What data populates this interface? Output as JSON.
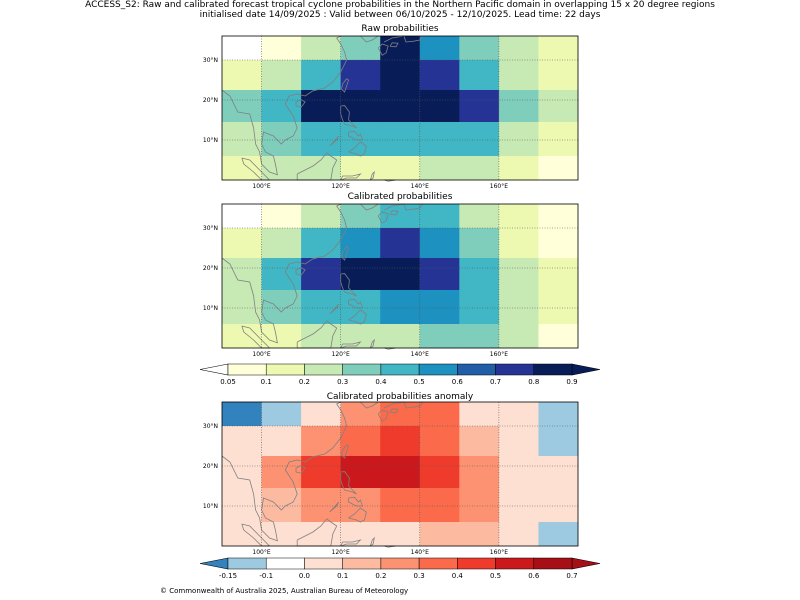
{
  "header": {
    "line1": "ACCESS_S2: Raw and calibrated forecast tropical cyclone probabilities in the Northern Pacific domain in overlapping 15 x 20 degree regions",
    "line2": "initialised date 14/09/2025 :  Valid between 06/10/2025 - 12/10/2025. Lead time: 22 days"
  },
  "footer": {
    "copyright": "© Commonwealth of Australia 2025, Australian Bureau of Meteorology"
  },
  "colors": {
    "prob": [
      "#ffffff",
      "#ffffd9",
      "#edf8b1",
      "#c7e9b4",
      "#7fcdbb",
      "#41b6c4",
      "#1d91c0",
      "#225ea8",
      "#253494",
      "#081d58"
    ],
    "anom": [
      "#3182bd",
      "#9ecae1",
      "#ffffff",
      "#fee0d2",
      "#fcbba1",
      "#fc9272",
      "#fb6a4a",
      "#ef3b2c",
      "#cb181d",
      "#a50f15"
    ],
    "coast": "#808080",
    "grid": "#555555"
  },
  "chart_data": [
    {
      "type": "heatmap",
      "title": "Raw probabilities",
      "x_ticks": [
        "100°E",
        "120°E",
        "140°E",
        "160°E"
      ],
      "y_ticks": [
        "30°N",
        "20°N",
        "10°N"
      ],
      "lon_range": [
        90,
        180
      ],
      "lat_range": [
        0,
        36
      ],
      "lon_edges": [
        90,
        100,
        110,
        120,
        130,
        140,
        150,
        160,
        170,
        180
      ],
      "lat_edges": [
        36,
        30,
        22.5,
        14.5,
        6,
        0
      ],
      "values": [
        [
          0.0,
          0.07,
          0.22,
          0.35,
          0.85,
          0.55,
          0.35,
          0.22,
          0.12
        ],
        [
          0.12,
          0.22,
          0.45,
          0.75,
          0.85,
          0.75,
          0.45,
          0.22,
          0.12
        ],
        [
          0.35,
          0.45,
          0.85,
          0.85,
          0.85,
          0.85,
          0.75,
          0.35,
          0.22
        ],
        [
          0.22,
          0.35,
          0.45,
          0.45,
          0.45,
          0.45,
          0.45,
          0.22,
          0.12
        ],
        [
          0.12,
          0.22,
          0.22,
          0.12,
          0.12,
          0.22,
          0.22,
          0.12,
          0.07
        ]
      ]
    },
    {
      "type": "heatmap",
      "title": "Calibrated probabilities",
      "x_ticks": [
        "100°E",
        "120°E",
        "140°E",
        "160°E"
      ],
      "y_ticks": [
        "30°N",
        "20°N",
        "10°N"
      ],
      "lon_range": [
        90,
        180
      ],
      "lat_range": [
        0,
        36
      ],
      "lon_edges": [
        90,
        100,
        110,
        120,
        130,
        140,
        150,
        160,
        170,
        180
      ],
      "lat_edges": [
        36,
        30,
        22.5,
        14.5,
        6,
        0
      ],
      "values": [
        [
          0.0,
          0.07,
          0.22,
          0.35,
          0.45,
          0.45,
          0.22,
          0.12,
          0.07
        ],
        [
          0.12,
          0.22,
          0.45,
          0.55,
          0.75,
          0.55,
          0.35,
          0.12,
          0.07
        ],
        [
          0.22,
          0.45,
          0.75,
          0.85,
          0.85,
          0.75,
          0.45,
          0.22,
          0.12
        ],
        [
          0.22,
          0.35,
          0.45,
          0.45,
          0.55,
          0.55,
          0.45,
          0.22,
          0.12
        ],
        [
          0.12,
          0.12,
          0.22,
          0.22,
          0.22,
          0.35,
          0.35,
          0.22,
          0.07
        ]
      ]
    },
    {
      "type": "heatmap",
      "title": "Calibrated probabilities anomaly",
      "x_ticks": [
        "100°E",
        "120°E",
        "140°E",
        "160°E"
      ],
      "y_ticks": [
        "30°N",
        "20°N",
        "10°N"
      ],
      "lon_range": [
        90,
        180
      ],
      "lat_range": [
        0,
        36
      ],
      "lon_edges": [
        90,
        100,
        110,
        120,
        130,
        140,
        150,
        160,
        170,
        180
      ],
      "lat_edges": [
        36,
        30,
        22.5,
        14.5,
        6,
        0
      ],
      "values": [
        [
          -0.2,
          -0.12,
          0.05,
          0.25,
          0.35,
          0.35,
          0.05,
          0.0,
          -0.12
        ],
        [
          0.0,
          0.05,
          0.25,
          0.35,
          0.45,
          0.35,
          0.15,
          0.0,
          -0.12
        ],
        [
          0.05,
          0.25,
          0.45,
          0.55,
          0.55,
          0.45,
          0.25,
          0.05,
          0.0
        ],
        [
          0.05,
          0.15,
          0.25,
          0.25,
          0.35,
          0.35,
          0.25,
          0.05,
          0.0
        ],
        [
          0.0,
          0.05,
          0.05,
          0.05,
          0.05,
          0.15,
          0.15,
          0.05,
          -0.12
        ]
      ]
    }
  ],
  "colorbars": [
    {
      "name": "probability",
      "bounds": [
        0.05,
        0.1,
        0.2,
        0.3,
        0.4,
        0.5,
        0.6,
        0.7,
        0.8,
        0.9
      ],
      "labels": [
        "0.05",
        "0.1",
        "0.2",
        "0.3",
        "0.4",
        "0.5",
        "0.6",
        "0.7",
        "0.8",
        "0.9"
      ]
    },
    {
      "name": "anomaly",
      "bounds": [
        -0.15,
        -0.1,
        0.0,
        0.1,
        0.2,
        0.3,
        0.4,
        0.5,
        0.6,
        0.7
      ],
      "labels": [
        "-0.15",
        "-0.1",
        "0.0",
        "0.1",
        "0.2",
        "0.3",
        "0.4",
        "0.5",
        "0.6",
        "0.7"
      ]
    }
  ]
}
